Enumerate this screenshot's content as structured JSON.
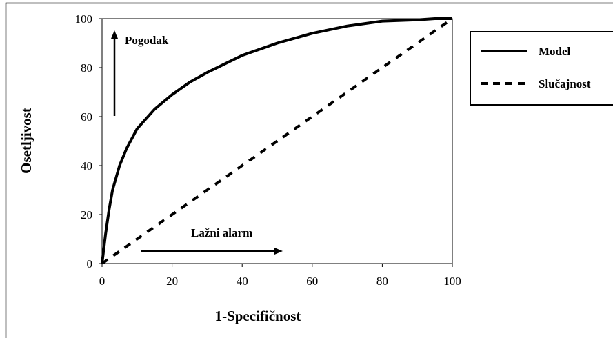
{
  "chart_data": {
    "type": "line",
    "xlabel": "1-Specifičnost",
    "ylabel": "Osetljivost",
    "xlim": [
      0,
      100
    ],
    "ylim": [
      0,
      100
    ],
    "x_ticks": [
      "0",
      "20",
      "40",
      "60",
      "80",
      "100"
    ],
    "y_ticks": [
      "0",
      "20",
      "40",
      "60",
      "80",
      "100"
    ],
    "grid": false,
    "legend_position": "right",
    "series": [
      {
        "name": "Model",
        "style": "solid",
        "x": [
          0,
          1,
          2,
          3,
          5,
          7,
          10,
          15,
          20,
          25,
          30,
          40,
          50,
          60,
          70,
          80,
          90,
          95,
          100
        ],
        "y": [
          0,
          12,
          22,
          30,
          40,
          47,
          55,
          63,
          69,
          74,
          78,
          85,
          90,
          94,
          97,
          99,
          99.5,
          100,
          100
        ]
      },
      {
        "name": "Slučajnost",
        "style": "dashed",
        "x": [
          0,
          100
        ],
        "y": [
          0,
          100
        ]
      }
    ],
    "annotations": [
      {
        "text": "Pogodak",
        "arrow": "up"
      },
      {
        "text": "Lažni alarm",
        "arrow": "right"
      }
    ]
  }
}
